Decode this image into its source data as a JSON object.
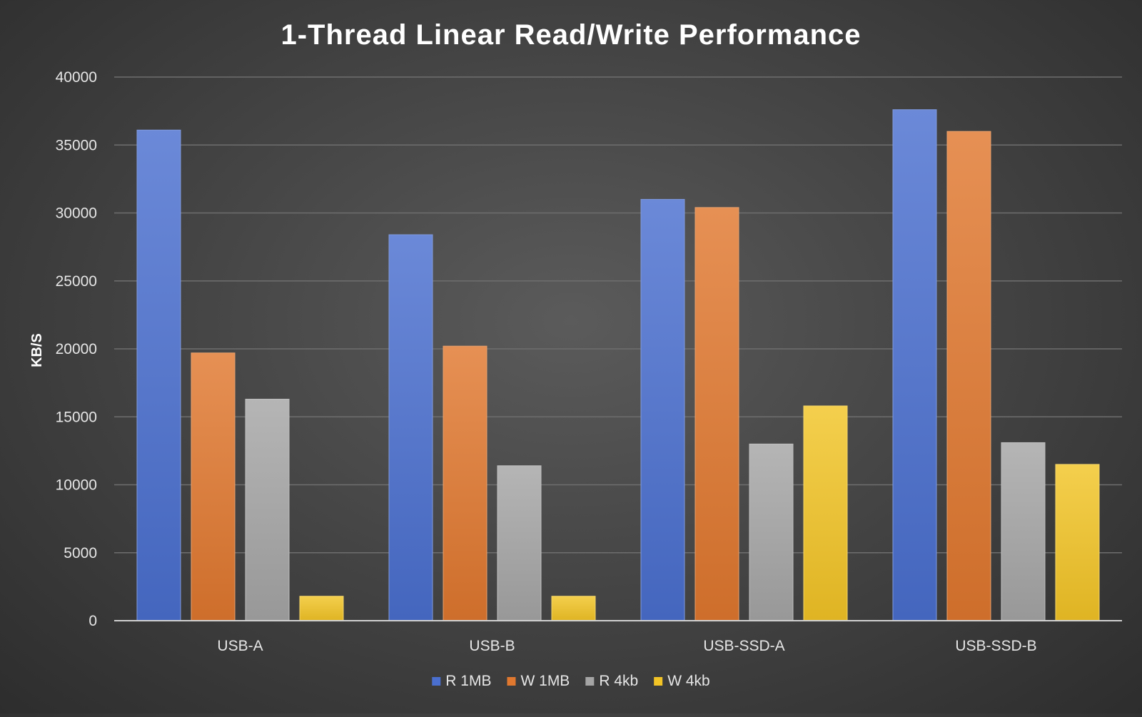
{
  "chart_data": {
    "type": "bar",
    "title": "1-Thread Linear Read/Write Performance",
    "xlabel": "",
    "ylabel": "KB/S",
    "ylim": [
      0,
      40000
    ],
    "yticks": [
      0,
      5000,
      10000,
      15000,
      20000,
      25000,
      30000,
      35000,
      40000
    ],
    "grid": true,
    "legend_position": "bottom",
    "categories": [
      "USB-A",
      "USB-B",
      "USB-SSD-A",
      "USB-SSD-B"
    ],
    "series": [
      {
        "name": "R 1MB",
        "color": "#4a6fcf",
        "values": [
          36100,
          28400,
          31000,
          37600
        ]
      },
      {
        "name": "W 1MB",
        "color": "#e0782f",
        "values": [
          19700,
          20200,
          30400,
          36000
        ]
      },
      {
        "name": "R 4kb",
        "color": "#a5a5a5",
        "values": [
          16300,
          11400,
          13000,
          13100
        ]
      },
      {
        "name": "W 4kb",
        "color": "#f2c426",
        "values": [
          1800,
          1800,
          15800,
          11500
        ]
      }
    ]
  }
}
